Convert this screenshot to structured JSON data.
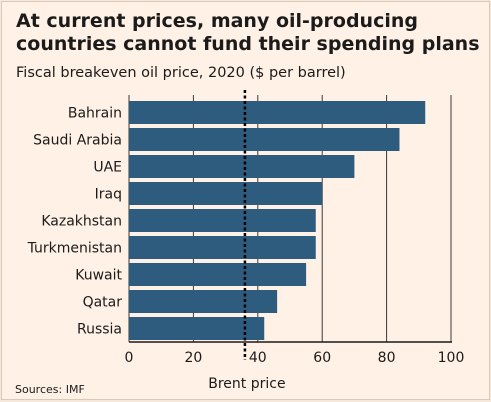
{
  "title": "At current prices, many oil-producing countries cannot fund their spending plans",
  "subtitle": "Fiscal breakeven oil price, 2020 ($ per barrel)",
  "source": "Sources: IMF",
  "colors": {
    "bar": "#2d5c7f",
    "grid": "#3a3a3a",
    "reference_line": "#000000",
    "background": "#fff1e5"
  },
  "chart_data": {
    "type": "bar",
    "orientation": "horizontal",
    "categories": [
      "Bahrain",
      "Saudi Arabia",
      "UAE",
      "Iraq",
      "Kazakhstan",
      "Turkmenistan",
      "Kuwait",
      "Qatar",
      "Russia"
    ],
    "values": [
      92,
      84,
      70,
      60,
      58,
      58,
      55,
      46,
      42
    ],
    "xlim": [
      0,
      100
    ],
    "xticks": [
      0,
      20,
      40,
      60,
      80,
      100
    ],
    "grid": true,
    "reference_line": {
      "value": 36,
      "label": "Brent price",
      "style": "dotted"
    }
  }
}
